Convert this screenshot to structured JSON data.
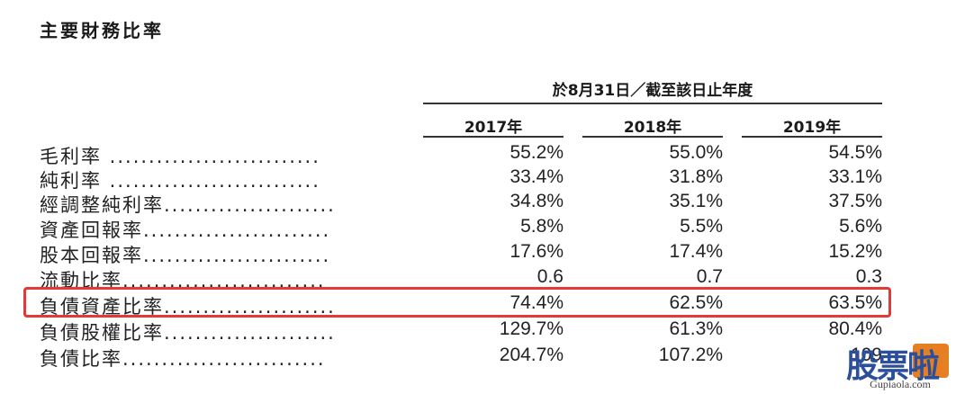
{
  "title": "主要財務比率",
  "period_header": "於8月31日／截至該日止年度",
  "years": [
    "2017年",
    "2018年",
    "2019年"
  ],
  "rows": [
    {
      "label": "毛利率 ...........................",
      "values": [
        "55.2%",
        "55.0%",
        "54.5%"
      ]
    },
    {
      "label": "純利率 ...........................",
      "values": [
        "33.4%",
        "31.8%",
        "33.1%"
      ]
    },
    {
      "label": "經調整純利率......................",
      "values": [
        "34.8%",
        "35.1%",
        "37.5%"
      ]
    },
    {
      "label": "資產回報率........................",
      "values": [
        "5.8%",
        "5.5%",
        "5.6%"
      ]
    },
    {
      "label": "股本回報率........................",
      "values": [
        "17.6%",
        "17.4%",
        "15.2%"
      ]
    },
    {
      "label": "流動比率..........................",
      "values": [
        "0.6",
        "0.7",
        "0.3"
      ]
    },
    {
      "label": "負債資產比率......................",
      "values": [
        "74.4%",
        "62.5%",
        "63.5%"
      ]
    },
    {
      "label": "負債股權比率......................",
      "values": [
        "129.7%",
        "61.3%",
        "80.4%"
      ]
    },
    {
      "label": "負債比率..........................",
      "values": [
        "204.7%",
        "107.2%",
        "109"
      ]
    }
  ],
  "highlight_color": "#e53935",
  "watermark": {
    "text": "股票啦",
    "sub": "Gupiaola.com"
  }
}
